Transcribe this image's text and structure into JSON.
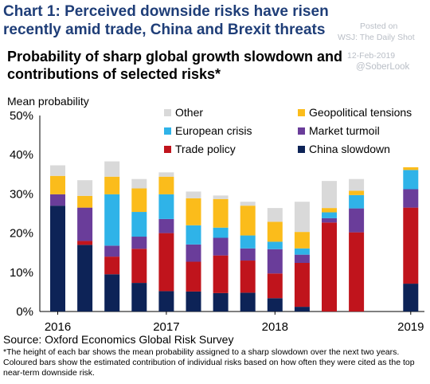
{
  "header": {
    "title": "Chart 1: Perceived downside risks have risen recently amid trade, China and Brexit threats",
    "watermark_1": "Posted on",
    "watermark_2": "WSJ: The Daily Shot",
    "watermark_3": "12-Feb-2019",
    "watermark_4": "@SoberLook"
  },
  "source": "Source: Oxford Economics Global Risk Survey",
  "footnote": "*The height of each bar shows the mean probability assigned to a sharp slowdown over the next two years. Coloured bars show the estimated contribution of individual risks based on how often they were cited as the top near-term downside risk.",
  "colors": {
    "China slowdown": "#0d2357",
    "Trade policy": "#c0141c",
    "Market turmoil": "#6a3d9a",
    "European crisis": "#2fb3e8",
    "Geopolitical tensions": "#fbbc1b",
    "Other": "#d9d9d9"
  },
  "chart_data": {
    "type": "bar",
    "stacked": true,
    "title": "Probability of sharp global growth slowdown and contributions of selected risks*",
    "ylabel": "Mean probability",
    "ylim": [
      0,
      50
    ],
    "yticks": [
      "0%",
      "10%",
      "20%",
      "30%",
      "40%",
      "50%"
    ],
    "x_year_labels": [
      "2016",
      "2017",
      "2018",
      "2019"
    ],
    "grid": false,
    "legend_position": "top",
    "legend": [
      "Other",
      "Geopolitical tensions",
      "European crisis",
      "Market turmoil",
      "Trade policy",
      "China slowdown"
    ],
    "bar_count": 14,
    "series": [
      {
        "name": "China slowdown",
        "values": [
          27,
          17,
          9.5,
          7.3,
          5.2,
          5.1,
          4.7,
          4.8,
          3.4,
          1.2,
          0,
          0,
          0,
          7.1
        ]
      },
      {
        "name": "Trade policy",
        "values": [
          0,
          1,
          4.5,
          8.7,
          14.8,
          7.6,
          9.6,
          8.2,
          6.3,
          11.2,
          22.7,
          20.2,
          0,
          19.4
        ]
      },
      {
        "name": "Market turmoil",
        "values": [
          2.9,
          8.5,
          2.8,
          3.1,
          3.6,
          4.4,
          4.5,
          3.1,
          6.2,
          2.1,
          1.1,
          6.1,
          0,
          4.7
        ]
      },
      {
        "name": "European crisis",
        "values": [
          0,
          0,
          13.1,
          6.3,
          6.3,
          4.9,
          2.6,
          3.3,
          1.9,
          1.6,
          1.5,
          3.4,
          0,
          4.9
        ]
      },
      {
        "name": "Geopolitical tensions",
        "values": [
          4.7,
          3,
          4.5,
          6,
          4.5,
          6.9,
          7.3,
          7.6,
          5.1,
          4.2,
          1.1,
          1.1,
          0,
          0.7
        ]
      },
      {
        "name": "Other",
        "values": [
          2.7,
          4,
          3.9,
          2.4,
          1.1,
          1.7,
          0.9,
          1,
          3.5,
          7.7,
          6.9,
          3,
          0,
          0
        ]
      }
    ]
  }
}
